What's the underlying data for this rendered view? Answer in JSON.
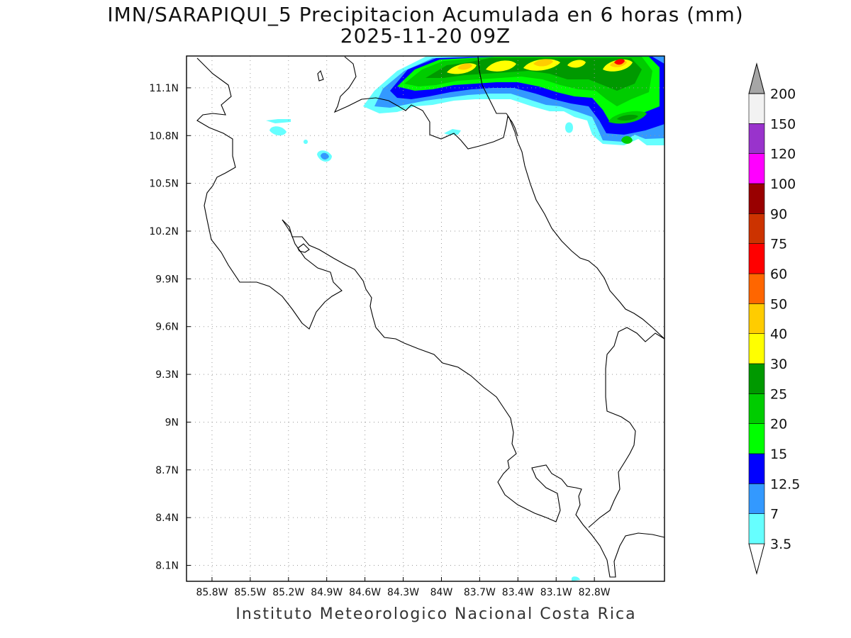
{
  "title": "IMN/SARAPIQUI_5 Precipitacion Acumulada en 6 horas (mm)",
  "subtitle": "2025-11-20 09Z",
  "credit": "Instituto Meteorologico Nacional Costa Rica",
  "map": {
    "lon_range": [
      -86.0,
      -82.25
    ],
    "lat_range": [
      8.0,
      11.3
    ],
    "lon_ticks": [
      -85.8,
      -85.5,
      -85.2,
      -84.9,
      -84.6,
      -84.3,
      -84.0,
      -83.7,
      -83.4,
      -83.1,
      -82.8
    ],
    "lon_tick_labels": [
      "85.8W",
      "85.5W",
      "85.2W",
      "84.9W",
      "84.6W",
      "84.3W",
      "84W",
      "83.7W",
      "83.4W",
      "83.1W",
      "82.8W"
    ],
    "lat_ticks": [
      8.1,
      8.4,
      8.7,
      9.0,
      9.3,
      9.6,
      9.9,
      10.2,
      10.5,
      10.8,
      11.1
    ],
    "lat_tick_labels": [
      "8.1N",
      "8.4N",
      "8.7N",
      "9N",
      "9.3N",
      "9.6N",
      "9.9N",
      "10.2N",
      "10.5N",
      "10.8N",
      "11.1N"
    ],
    "grid": true
  },
  "colorbar": {
    "levels": [
      "3.5",
      "7",
      "12.5",
      "15",
      "20",
      "25",
      "30",
      "40",
      "50",
      "60",
      "75",
      "90",
      "100",
      "120",
      "150",
      "200"
    ],
    "colors": [
      "#ffffff",
      "#66ffff",
      "#3399ff",
      "#0000ff",
      "#00ff00",
      "#00cc00",
      "#009900",
      "#ffff00",
      "#ffcc00",
      "#ff6600",
      "#ff0000",
      "#cc3300",
      "#990000",
      "#ff00ff",
      "#9933cc",
      "#f2f2f2",
      "#a6a6a6"
    ]
  }
}
